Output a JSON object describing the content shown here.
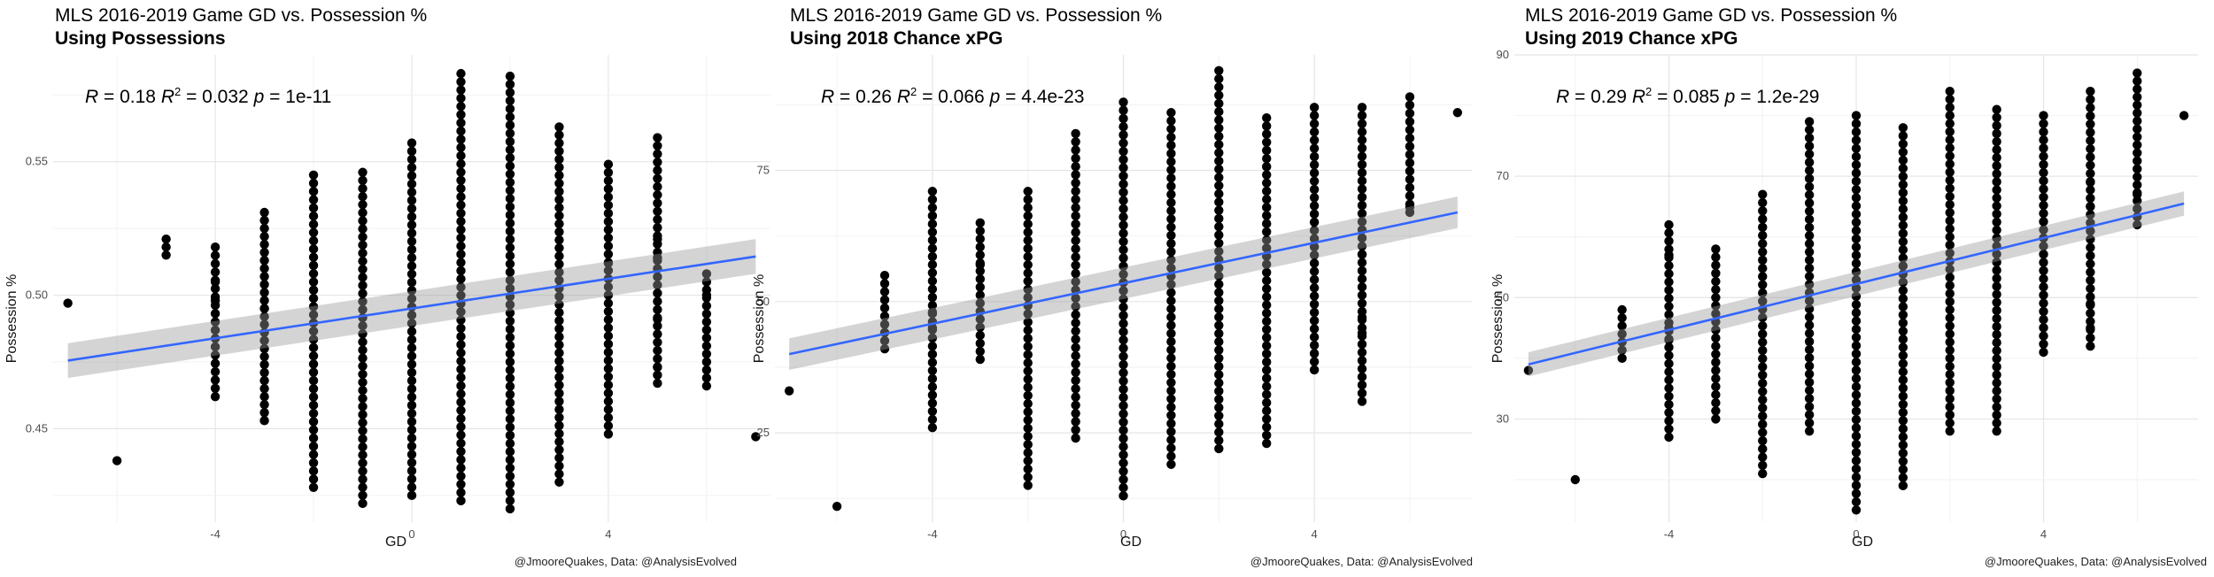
{
  "panels": [
    {
      "title": "MLS 2016-2019 Game GD vs. Possession %",
      "subtitle": "Using Possessions",
      "stats": {
        "r": "0.18",
        "r2": "0.032",
        "p": "1e-11"
      },
      "caption": "@JmooreQuakes, Data: @AnalysisEvolved"
    },
    {
      "title": "MLS 2016-2019 Game GD vs. Possession %",
      "subtitle": "Using 2018 Chance xPG",
      "stats": {
        "r": "0.26",
        "r2": "0.066",
        "p": "4.4e-23"
      },
      "caption": "@JmooreQuakes, Data: @AnalysisEvolved"
    },
    {
      "title": "MLS 2016-2019 Game GD vs. Possession %",
      "subtitle": "Using 2019 Chance xPG",
      "stats": {
        "r": "0.29",
        "r2": "0.085",
        "p": "1.2e-29"
      },
      "caption": "@JmooreQuakes, Data: @AnalysisEvolved"
    }
  ],
  "chart_data": [
    {
      "type": "scatter",
      "title": "MLS 2016-2019 Game GD vs. Possession %",
      "subtitle": "Using Possessions",
      "xlabel": "GD",
      "ylabel": "Possession %",
      "xlim": [
        -7.3,
        7.3
      ],
      "ylim": [
        0.415,
        0.59
      ],
      "xticks": [
        -4,
        0,
        4
      ],
      "yticks": [
        0.45,
        0.5,
        0.55
      ],
      "ytick_labels": [
        "0.45",
        "0.50",
        "0.55"
      ],
      "grid": true,
      "annotation": "R = 0.18 R2 = 0.032 p = 1e-11",
      "columns": [
        {
          "x": -7,
          "min": 0.497,
          "max": 0.497
        },
        {
          "x": -6,
          "min": 0.438,
          "max": 0.438
        },
        {
          "x": -5,
          "min": 0.515,
          "max": 0.521
        },
        {
          "x": -4,
          "min": 0.462,
          "max": 0.518
        },
        {
          "x": -3,
          "min": 0.453,
          "max": 0.531
        },
        {
          "x": -2,
          "min": 0.428,
          "max": 0.545
        },
        {
          "x": -1,
          "min": 0.422,
          "max": 0.546
        },
        {
          "x": 0,
          "min": 0.425,
          "max": 0.557
        },
        {
          "x": 1,
          "min": 0.423,
          "max": 0.583
        },
        {
          "x": 2,
          "min": 0.42,
          "max": 0.582
        },
        {
          "x": 3,
          "min": 0.43,
          "max": 0.563
        },
        {
          "x": 4,
          "min": 0.448,
          "max": 0.549
        },
        {
          "x": 5,
          "min": 0.467,
          "max": 0.559
        },
        {
          "x": 6,
          "min": 0.466,
          "max": 0.508
        },
        {
          "x": 7,
          "min": 0.447,
          "max": 0.447
        }
      ],
      "extra_points": [
        {
          "x": -4,
          "y": 0.505
        },
        {
          "x": -4,
          "y": 0.498
        },
        {
          "x": -3,
          "y": 0.495
        },
        {
          "x": 5,
          "y": 0.491
        },
        {
          "x": 5,
          "y": 0.473
        },
        {
          "x": 5,
          "y": 0.514
        },
        {
          "x": 5,
          "y": 0.521
        },
        {
          "x": 6,
          "y": 0.5
        },
        {
          "x": 4,
          "y": 0.512
        }
      ],
      "fit": {
        "x": [
          -7,
          7
        ],
        "y": [
          0.4755,
          0.5145
        ],
        "ci_low": [
          0.469,
          0.508
        ],
        "ci_high": [
          0.482,
          0.521
        ]
      }
    },
    {
      "type": "scatter",
      "title": "MLS 2016-2019 Game GD vs. Possession %",
      "subtitle": "Using 2018 Chance xPG",
      "xlabel": "GD",
      "ylabel": "Possession %",
      "xlim": [
        -7.3,
        7.3
      ],
      "ylim": [
        8,
        97
      ],
      "xticks": [
        -4,
        0,
        4
      ],
      "yticks": [
        25,
        50,
        75
      ],
      "ytick_labels": [
        "25",
        "50",
        "75"
      ],
      "grid": true,
      "annotation": "R = 0.26 R2 = 0.066 p = 4.4e-23",
      "columns": [
        {
          "x": -7,
          "min": 33,
          "max": 33
        },
        {
          "x": -6,
          "min": 11,
          "max": 11
        },
        {
          "x": -5,
          "min": 41,
          "max": 55
        },
        {
          "x": -4,
          "min": 26,
          "max": 71
        },
        {
          "x": -3,
          "min": 39,
          "max": 65
        },
        {
          "x": -2,
          "min": 15,
          "max": 71
        },
        {
          "x": -1,
          "min": 24,
          "max": 82
        },
        {
          "x": 0,
          "min": 13,
          "max": 88
        },
        {
          "x": 1,
          "min": 19,
          "max": 86
        },
        {
          "x": 2,
          "min": 22,
          "max": 94
        },
        {
          "x": 3,
          "min": 23,
          "max": 85
        },
        {
          "x": 4,
          "min": 37,
          "max": 87
        },
        {
          "x": 5,
          "min": 31,
          "max": 87
        },
        {
          "x": 6,
          "min": 67,
          "max": 89
        },
        {
          "x": 7,
          "min": 86,
          "max": 86
        }
      ],
      "extra_points": [
        {
          "x": -4,
          "y": 48
        },
        {
          "x": -4,
          "y": 45
        },
        {
          "x": -3,
          "y": 57
        },
        {
          "x": 5,
          "y": 47
        },
        {
          "x": 5,
          "y": 44
        },
        {
          "x": 5,
          "y": 59
        },
        {
          "x": 6,
          "y": 68
        }
      ],
      "fit": {
        "x": [
          -7,
          7
        ],
        "y": [
          40,
          67
        ],
        "ci_low": [
          37,
          64
        ],
        "ci_high": [
          43,
          70
        ]
      }
    },
    {
      "type": "scatter",
      "title": "MLS 2016-2019 Game GD vs. Possession %",
      "subtitle": "Using 2019 Chance xPG",
      "xlabel": "GD",
      "ylabel": "Possession %",
      "xlim": [
        -7.3,
        7.3
      ],
      "ylim": [
        13,
        90
      ],
      "xticks": [
        -4,
        0,
        4
      ],
      "yticks": [
        30,
        50,
        70,
        90
      ],
      "ytick_labels": [
        "30",
        "50",
        "70",
        "90"
      ],
      "grid": true,
      "annotation": "R = 0.29 R2 = 0.085 p = 1.2e-29",
      "columns": [
        {
          "x": -7,
          "min": 38,
          "max": 38
        },
        {
          "x": -6,
          "min": 20,
          "max": 20
        },
        {
          "x": -5,
          "min": 40,
          "max": 48
        },
        {
          "x": -4,
          "min": 27,
          "max": 62
        },
        {
          "x": -3,
          "min": 30,
          "max": 58
        },
        {
          "x": -2,
          "min": 21,
          "max": 67
        },
        {
          "x": -1,
          "min": 28,
          "max": 79
        },
        {
          "x": 0,
          "min": 15,
          "max": 80
        },
        {
          "x": 1,
          "min": 19,
          "max": 78
        },
        {
          "x": 2,
          "min": 28,
          "max": 84
        },
        {
          "x": 3,
          "min": 28,
          "max": 81
        },
        {
          "x": 4,
          "min": 41,
          "max": 80
        },
        {
          "x": 5,
          "min": 42,
          "max": 84
        },
        {
          "x": 6,
          "min": 62,
          "max": 87
        },
        {
          "x": 7,
          "min": 80,
          "max": 80
        }
      ],
      "extra_points": [
        {
          "x": -4,
          "y": 45
        },
        {
          "x": -4,
          "y": 43
        },
        {
          "x": -4,
          "y": 57
        },
        {
          "x": 5,
          "y": 45
        },
        {
          "x": 5,
          "y": 49
        },
        {
          "x": 5,
          "y": 69
        },
        {
          "x": 5,
          "y": 65
        },
        {
          "x": 6,
          "y": 67
        }
      ],
      "fit": {
        "x": [
          -7,
          7
        ],
        "y": [
          39,
          65.5
        ],
        "ci_low": [
          37,
          63.5
        ],
        "ci_high": [
          41,
          67.5
        ]
      }
    }
  ]
}
